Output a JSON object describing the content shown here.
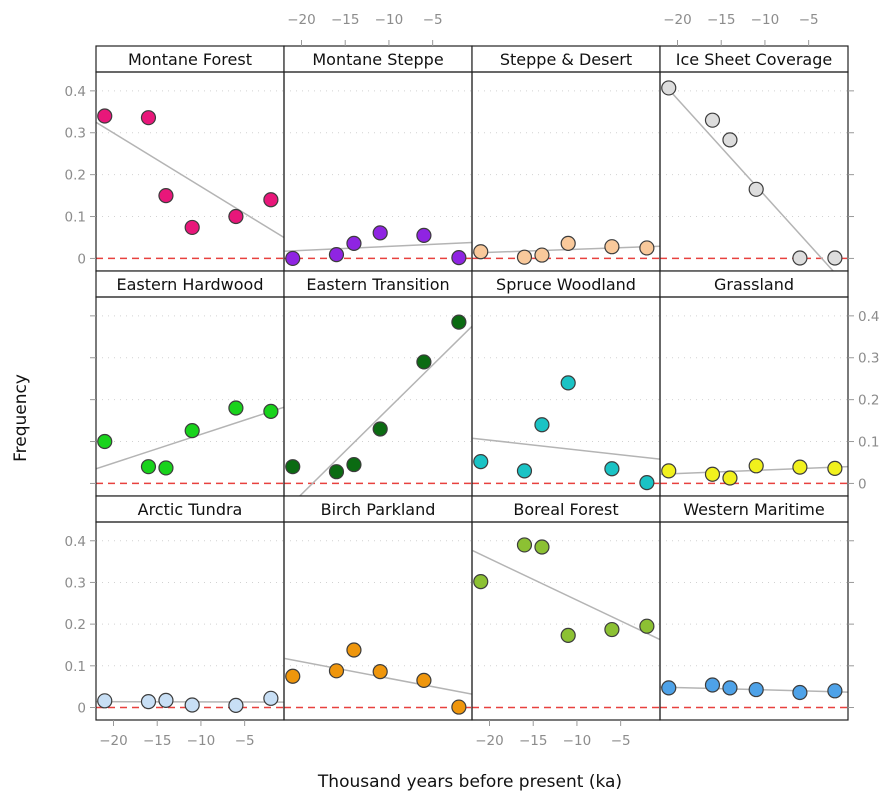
{
  "chart_data": {
    "type": "scatter",
    "layout": "lattice-4x3",
    "xlabel": "Thousand years before present (ka)",
    "ylabel": "Frequency",
    "xlim": [
      -22,
      -0.5
    ],
    "ylim": [
      -0.03,
      0.445
    ],
    "x_ticks": [
      -20,
      -15,
      -10,
      -5
    ],
    "y_ticks": [
      0,
      0.1,
      0.2,
      0.3,
      0.4
    ],
    "x_tick_labels": [
      "−20",
      "−15",
      "−10",
      "−5"
    ],
    "y_tick_labels": [
      "0",
      "0.1",
      "0.2",
      "0.3",
      "0.4"
    ],
    "reference_line": {
      "y": 0,
      "style": "dashed",
      "color": "#e8413f"
    },
    "trend_line_color": "#b4b4b4",
    "grid": "dotted horizontal",
    "panels": [
      {
        "title": "Montane Forest",
        "color": "#e8177a",
        "x": [
          -21,
          -16,
          -14,
          -11,
          -6,
          -2
        ],
        "y": [
          0.34,
          0.336,
          0.15,
          0.074,
          0.1,
          0.14
        ],
        "trend": [
          [
            -22,
            0.325
          ],
          [
            -0.5,
            0.05
          ]
        ]
      },
      {
        "title": "Montane Steppe",
        "color": "#8f24e2",
        "x": [
          -21,
          -16,
          -14,
          -11,
          -6,
          -2
        ],
        "y": [
          0.0,
          0.009,
          0.036,
          0.061,
          0.055,
          0.002
        ],
        "trend": [
          [
            -22,
            0.017
          ],
          [
            -0.5,
            0.038
          ]
        ]
      },
      {
        "title": "Steppe & Desert",
        "color": "#f9c99b",
        "x": [
          -21,
          -16,
          -14,
          -11,
          -6,
          -2
        ],
        "y": [
          0.016,
          0.003,
          0.008,
          0.036,
          0.028,
          0.025
        ],
        "trend": [
          [
            -22,
            0.013
          ],
          [
            -0.5,
            0.029
          ]
        ]
      },
      {
        "title": "Ice Sheet Coverage",
        "color": "#dddddd",
        "x": [
          -21,
          -16,
          -14,
          -11,
          -6,
          -2
        ],
        "y": [
          0.407,
          0.33,
          0.283,
          0.165,
          0.001,
          0.001
        ],
        "trend": [
          [
            -21.5,
            0.415
          ],
          [
            -2.2,
            -0.03
          ]
        ]
      },
      {
        "title": "Eastern Hardwood",
        "color": "#19d31c",
        "x": [
          -21,
          -16,
          -14,
          -11,
          -6,
          -2
        ],
        "y": [
          0.1,
          0.04,
          0.037,
          0.126,
          0.18,
          0.172
        ],
        "trend": [
          [
            -22,
            0.035
          ],
          [
            -0.5,
            0.182
          ]
        ]
      },
      {
        "title": "Eastern Transition",
        "color": "#0b6b12",
        "x": [
          -21,
          -16,
          -14,
          -11,
          -6,
          -2
        ],
        "y": [
          0.04,
          0.028,
          0.045,
          0.13,
          0.29,
          0.385
        ],
        "trend": [
          [
            -20.2,
            -0.03
          ],
          [
            -0.5,
            0.375
          ]
        ]
      },
      {
        "title": "Spruce Woodland",
        "color": "#1ac3c5",
        "x": [
          -21,
          -16,
          -14,
          -11,
          -6,
          -2
        ],
        "y": [
          0.052,
          0.03,
          0.14,
          0.24,
          0.035,
          0.002
        ],
        "trend": [
          [
            -22,
            0.108
          ],
          [
            -0.5,
            0.058
          ]
        ]
      },
      {
        "title": "Grassland",
        "color": "#f1f11d",
        "x": [
          -21,
          -16,
          -14,
          -11,
          -6,
          -2
        ],
        "y": [
          0.03,
          0.022,
          0.013,
          0.042,
          0.039,
          0.036
        ],
        "trend": [
          [
            -22,
            0.022
          ],
          [
            -0.5,
            0.04
          ]
        ]
      },
      {
        "title": "Arctic Tundra",
        "color": "#c8dff5",
        "x": [
          -21,
          -16,
          -14,
          -11,
          -6,
          -2
        ],
        "y": [
          0.016,
          0.014,
          0.017,
          0.006,
          0.005,
          0.022
        ],
        "trend": [
          [
            -22,
            0.014
          ],
          [
            -0.5,
            0.013
          ]
        ]
      },
      {
        "title": "Birch Parkland",
        "color": "#ef960c",
        "x": [
          -21,
          -16,
          -14,
          -11,
          -6,
          -2
        ],
        "y": [
          0.075,
          0.088,
          0.138,
          0.086,
          0.065,
          0.001
        ],
        "trend": [
          [
            -22,
            0.118
          ],
          [
            -0.5,
            0.032
          ]
        ]
      },
      {
        "title": "Boreal Forest",
        "color": "#8cc133",
        "x": [
          -21,
          -16,
          -14,
          -11,
          -6,
          -2
        ],
        "y": [
          0.302,
          0.39,
          0.385,
          0.173,
          0.187,
          0.195
        ],
        "trend": [
          [
            -22,
            0.377
          ],
          [
            -0.5,
            0.163
          ]
        ]
      },
      {
        "title": "Western Maritime",
        "color": "#4ea2e8",
        "x": [
          -21,
          -16,
          -14,
          -11,
          -6,
          -2
        ],
        "y": [
          0.047,
          0.054,
          0.047,
          0.043,
          0.036,
          0.04
        ],
        "trend": [
          [
            -22,
            0.049
          ],
          [
            -0.5,
            0.037
          ]
        ]
      }
    ]
  }
}
